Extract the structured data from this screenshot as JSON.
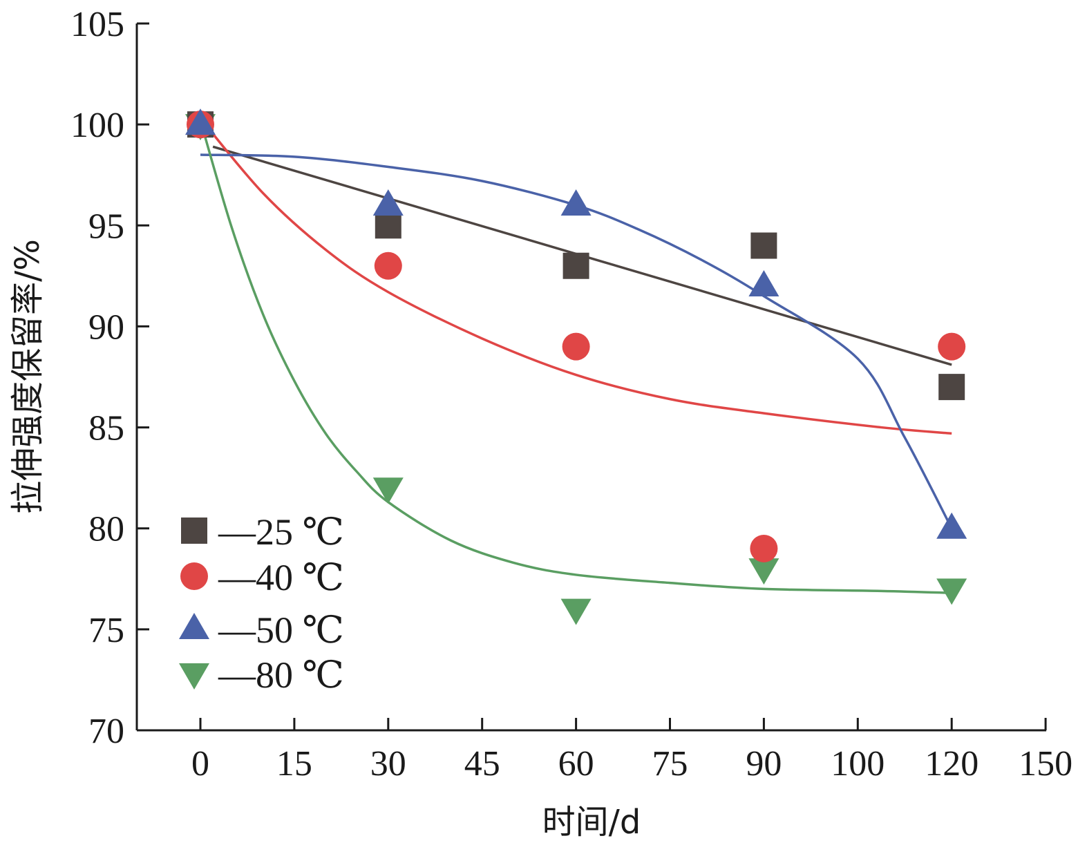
{
  "chart_data": {
    "type": "scatter",
    "xlabel": "时间/d",
    "ylabel": "拉伸强度保留率/%",
    "x_ticks": [
      "0",
      "15",
      "30",
      "45",
      "60",
      "75",
      "90",
      "100",
      "120",
      "150"
    ],
    "y_ticks": [
      "70",
      "75",
      "80",
      "85",
      "90",
      "95",
      "100",
      "105"
    ],
    "ylim": [
      70,
      105
    ],
    "grid": false,
    "legend_position": "bottom-left",
    "series": [
      {
        "name": "—25 ℃",
        "marker": "square",
        "color": "#4d4542",
        "x": [
          0,
          30,
          60,
          90,
          120
        ],
        "y": [
          100,
          95,
          93,
          94,
          87
        ],
        "fit": {
          "kind": "linear",
          "x": [
            2,
            120
          ],
          "y": [
            98.9,
            88.1
          ]
        }
      },
      {
        "name": "—40 ℃",
        "marker": "circle",
        "color": "#e04646",
        "x": [
          0,
          30,
          60,
          90,
          120
        ],
        "y": [
          100,
          93,
          89,
          79,
          89
        ],
        "fit": {
          "kind": "curve",
          "x": [
            0,
            10,
            20,
            30,
            45,
            60,
            75,
            90,
            105,
            120
          ],
          "y": [
            100.3,
            96.6,
            93.8,
            91.7,
            89.4,
            87.6,
            86.4,
            85.7,
            85.0,
            84.7
          ]
        }
      },
      {
        "name": "—50 ℃",
        "marker": "triangle-up",
        "color": "#4a62a8",
        "x": [
          0,
          30,
          60,
          90,
          120
        ],
        "y": [
          100,
          96,
          96,
          92,
          80
        ],
        "fit": {
          "kind": "curve",
          "x": [
            0,
            15,
            30,
            45,
            60,
            70,
            80,
            90,
            100,
            110,
            120
          ],
          "y": [
            98.5,
            98.4,
            97.9,
            97.2,
            96.0,
            94.8,
            93.3,
            91.5,
            88.4,
            84.5,
            80.0
          ]
        }
      },
      {
        "name": "—80 ℃",
        "marker": "triangle-down",
        "color": "#5a9e62",
        "x": [
          0,
          30,
          60,
          90,
          120
        ],
        "y": [
          100,
          82,
          76,
          78,
          77
        ],
        "fit": {
          "kind": "curve",
          "x": [
            0,
            5,
            10,
            15,
            20,
            25,
            30,
            40,
            50,
            60,
            75,
            90,
            105,
            120
          ],
          "y": [
            100.2,
            94.9,
            90.6,
            87.3,
            84.7,
            82.8,
            81.3,
            79.4,
            78.3,
            77.7,
            77.3,
            77.0,
            76.9,
            76.8
          ]
        }
      }
    ]
  }
}
